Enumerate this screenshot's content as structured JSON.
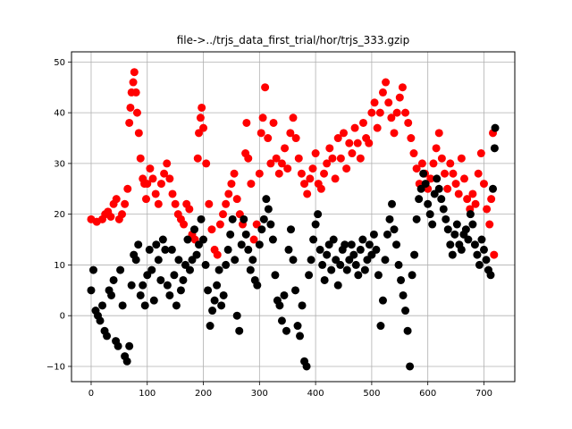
{
  "chart_data": {
    "type": "scatter",
    "title": "file->../trjs_data_first_trial/hor/trjs_333.gzip",
    "xlabel": "",
    "ylabel": "",
    "xlim": [
      -35,
      755
    ],
    "ylim": [
      -13,
      52
    ],
    "grid": true,
    "xticks": [
      0,
      100,
      200,
      300,
      400,
      500,
      600,
      700
    ],
    "yticks": [
      -10,
      0,
      10,
      20,
      30,
      40,
      50
    ],
    "colors": {
      "series_a": "#ff0000",
      "series_b": "#000000"
    },
    "series": [
      {
        "color": "#ff0000",
        "points": [
          [
            0,
            19
          ],
          [
            10,
            18.5
          ],
          [
            20,
            19
          ],
          [
            25,
            20
          ],
          [
            30,
            20.5
          ],
          [
            35,
            19.5
          ],
          [
            40,
            22
          ],
          [
            45,
            23
          ],
          [
            50,
            19
          ],
          [
            55,
            20
          ],
          [
            60,
            22
          ],
          [
            65,
            25
          ],
          [
            68,
            38
          ],
          [
            70,
            41
          ],
          [
            72,
            44
          ],
          [
            75,
            46
          ],
          [
            77,
            48
          ],
          [
            80,
            44
          ],
          [
            82,
            40
          ],
          [
            85,
            36
          ],
          [
            88,
            31
          ],
          [
            92,
            27
          ],
          [
            95,
            26
          ],
          [
            98,
            23
          ],
          [
            100,
            26
          ],
          [
            105,
            29
          ],
          [
            110,
            27
          ],
          [
            115,
            24
          ],
          [
            120,
            22
          ],
          [
            125,
            26
          ],
          [
            130,
            28
          ],
          [
            135,
            30
          ],
          [
            140,
            27
          ],
          [
            145,
            24
          ],
          [
            150,
            22
          ],
          [
            155,
            20
          ],
          [
            160,
            19
          ],
          [
            165,
            18
          ],
          [
            170,
            22
          ],
          [
            175,
            21
          ],
          [
            180,
            16
          ],
          [
            185,
            15
          ],
          [
            190,
            31
          ],
          [
            192,
            36
          ],
          [
            195,
            39
          ],
          [
            197,
            41
          ],
          [
            200,
            37
          ],
          [
            205,
            30
          ],
          [
            210,
            22
          ],
          [
            215,
            17
          ],
          [
            220,
            13
          ],
          [
            225,
            12
          ],
          [
            230,
            18
          ],
          [
            235,
            20
          ],
          [
            240,
            22
          ],
          [
            245,
            24
          ],
          [
            250,
            26
          ],
          [
            255,
            28
          ],
          [
            260,
            23
          ],
          [
            265,
            20
          ],
          [
            270,
            18
          ],
          [
            275,
            32
          ],
          [
            277,
            38
          ],
          [
            280,
            31
          ],
          [
            285,
            26
          ],
          [
            290,
            15
          ],
          [
            295,
            18
          ],
          [
            300,
            28
          ],
          [
            303,
            36
          ],
          [
            306,
            39
          ],
          [
            310,
            45
          ],
          [
            315,
            35
          ],
          [
            320,
            30
          ],
          [
            325,
            38
          ],
          [
            330,
            31
          ],
          [
            335,
            28
          ],
          [
            340,
            30
          ],
          [
            345,
            33
          ],
          [
            350,
            29
          ],
          [
            355,
            36
          ],
          [
            360,
            39
          ],
          [
            365,
            35
          ],
          [
            370,
            31
          ],
          [
            375,
            28
          ],
          [
            380,
            26
          ],
          [
            385,
            24
          ],
          [
            390,
            27
          ],
          [
            395,
            29
          ],
          [
            400,
            32
          ],
          [
            405,
            26
          ],
          [
            410,
            25
          ],
          [
            415,
            28
          ],
          [
            420,
            30
          ],
          [
            425,
            33
          ],
          [
            430,
            31
          ],
          [
            435,
            27
          ],
          [
            440,
            35
          ],
          [
            445,
            31
          ],
          [
            450,
            36
          ],
          [
            455,
            29
          ],
          [
            460,
            34
          ],
          [
            465,
            32
          ],
          [
            470,
            37
          ],
          [
            475,
            34
          ],
          [
            480,
            31
          ],
          [
            485,
            38
          ],
          [
            490,
            35
          ],
          [
            495,
            34
          ],
          [
            500,
            40
          ],
          [
            505,
            42
          ],
          [
            510,
            37
          ],
          [
            515,
            40
          ],
          [
            520,
            44
          ],
          [
            525,
            46
          ],
          [
            530,
            42
          ],
          [
            535,
            39
          ],
          [
            540,
            36
          ],
          [
            545,
            40
          ],
          [
            550,
            43
          ],
          [
            555,
            45
          ],
          [
            560,
            40
          ],
          [
            565,
            38
          ],
          [
            570,
            35
          ],
          [
            575,
            32
          ],
          [
            580,
            29
          ],
          [
            585,
            26
          ],
          [
            590,
            30
          ],
          [
            595,
            28
          ],
          [
            600,
            25
          ],
          [
            605,
            27
          ],
          [
            610,
            30
          ],
          [
            615,
            33
          ],
          [
            620,
            36
          ],
          [
            625,
            31
          ],
          [
            630,
            28
          ],
          [
            635,
            25
          ],
          [
            640,
            30
          ],
          [
            645,
            28
          ],
          [
            650,
            26
          ],
          [
            655,
            24
          ],
          [
            660,
            31
          ],
          [
            665,
            27
          ],
          [
            670,
            23
          ],
          [
            675,
            21
          ],
          [
            680,
            24
          ],
          [
            685,
            22
          ],
          [
            690,
            28
          ],
          [
            695,
            32
          ],
          [
            700,
            26
          ],
          [
            705,
            21
          ],
          [
            710,
            18
          ],
          [
            713,
            23
          ],
          [
            716,
            36
          ],
          [
            718,
            12
          ]
        ]
      },
      {
        "color": "#000000",
        "points": [
          [
            0,
            5
          ],
          [
            4,
            9
          ],
          [
            8,
            1
          ],
          [
            12,
            0
          ],
          [
            16,
            -1
          ],
          [
            20,
            2
          ],
          [
            24,
            -3
          ],
          [
            28,
            -4
          ],
          [
            32,
            5
          ],
          [
            36,
            4
          ],
          [
            40,
            7
          ],
          [
            44,
            -5
          ],
          [
            48,
            -6
          ],
          [
            52,
            9
          ],
          [
            56,
            2
          ],
          [
            60,
            -8
          ],
          [
            64,
            -9
          ],
          [
            68,
            -6
          ],
          [
            72,
            6
          ],
          [
            76,
            12
          ],
          [
            80,
            11
          ],
          [
            84,
            14
          ],
          [
            88,
            4
          ],
          [
            92,
            6
          ],
          [
            96,
            2
          ],
          [
            100,
            8
          ],
          [
            104,
            13
          ],
          [
            108,
            9
          ],
          [
            112,
            3
          ],
          [
            116,
            14
          ],
          [
            120,
            11
          ],
          [
            124,
            7
          ],
          [
            128,
            15
          ],
          [
            132,
            13
          ],
          [
            136,
            6
          ],
          [
            140,
            4
          ],
          [
            144,
            13
          ],
          [
            148,
            8
          ],
          [
            152,
            2
          ],
          [
            156,
            11
          ],
          [
            160,
            5
          ],
          [
            164,
            7
          ],
          [
            168,
            10
          ],
          [
            172,
            15
          ],
          [
            176,
            9
          ],
          [
            180,
            11
          ],
          [
            184,
            17
          ],
          [
            188,
            12
          ],
          [
            192,
            14
          ],
          [
            196,
            19
          ],
          [
            200,
            15
          ],
          [
            204,
            10
          ],
          [
            208,
            5
          ],
          [
            212,
            -2
          ],
          [
            216,
            1
          ],
          [
            220,
            3
          ],
          [
            224,
            6
          ],
          [
            228,
            9
          ],
          [
            232,
            2
          ],
          [
            236,
            4
          ],
          [
            240,
            10
          ],
          [
            244,
            13
          ],
          [
            248,
            16
          ],
          [
            252,
            19
          ],
          [
            256,
            11
          ],
          [
            260,
            0
          ],
          [
            264,
            -3
          ],
          [
            268,
            14
          ],
          [
            272,
            19
          ],
          [
            276,
            16
          ],
          [
            280,
            13
          ],
          [
            284,
            9
          ],
          [
            288,
            11
          ],
          [
            292,
            7
          ],
          [
            296,
            6
          ],
          [
            300,
            14
          ],
          [
            304,
            17
          ],
          [
            308,
            19
          ],
          [
            312,
            23
          ],
          [
            316,
            21
          ],
          [
            320,
            18
          ],
          [
            324,
            15
          ],
          [
            328,
            8
          ],
          [
            332,
            3
          ],
          [
            336,
            2
          ],
          [
            340,
            -1
          ],
          [
            344,
            4
          ],
          [
            348,
            -3
          ],
          [
            352,
            13
          ],
          [
            356,
            17
          ],
          [
            360,
            11
          ],
          [
            364,
            5
          ],
          [
            368,
            -2
          ],
          [
            372,
            -4
          ],
          [
            376,
            2
          ],
          [
            380,
            -9
          ],
          [
            384,
            -10
          ],
          [
            388,
            8
          ],
          [
            392,
            11
          ],
          [
            396,
            15
          ],
          [
            400,
            18
          ],
          [
            404,
            20
          ],
          [
            408,
            13
          ],
          [
            412,
            10
          ],
          [
            416,
            7
          ],
          [
            420,
            12
          ],
          [
            424,
            14
          ],
          [
            428,
            9
          ],
          [
            432,
            15
          ],
          [
            436,
            11
          ],
          [
            440,
            6
          ],
          [
            444,
            10
          ],
          [
            448,
            13
          ],
          [
            452,
            14
          ],
          [
            456,
            9
          ],
          [
            460,
            11
          ],
          [
            464,
            14
          ],
          [
            468,
            12
          ],
          [
            472,
            10
          ],
          [
            476,
            8
          ],
          [
            480,
            13
          ],
          [
            484,
            15
          ],
          [
            488,
            9
          ],
          [
            492,
            11
          ],
          [
            496,
            14
          ],
          [
            500,
            12
          ],
          [
            504,
            16
          ],
          [
            508,
            13
          ],
          [
            512,
            8
          ],
          [
            516,
            -2
          ],
          [
            520,
            3
          ],
          [
            524,
            11
          ],
          [
            528,
            16
          ],
          [
            532,
            19
          ],
          [
            536,
            22
          ],
          [
            540,
            17
          ],
          [
            544,
            14
          ],
          [
            548,
            10
          ],
          [
            552,
            7
          ],
          [
            556,
            4
          ],
          [
            560,
            1
          ],
          [
            564,
            -3
          ],
          [
            568,
            -10
          ],
          [
            572,
            8
          ],
          [
            576,
            12
          ],
          [
            580,
            19
          ],
          [
            584,
            23
          ],
          [
            588,
            25
          ],
          [
            592,
            28
          ],
          [
            596,
            26
          ],
          [
            600,
            22
          ],
          [
            604,
            20
          ],
          [
            608,
            18
          ],
          [
            612,
            24
          ],
          [
            616,
            27
          ],
          [
            620,
            25
          ],
          [
            624,
            23
          ],
          [
            628,
            21
          ],
          [
            632,
            19
          ],
          [
            636,
            17
          ],
          [
            640,
            14
          ],
          [
            644,
            12
          ],
          [
            648,
            16
          ],
          [
            652,
            18
          ],
          [
            656,
            14
          ],
          [
            660,
            13
          ],
          [
            664,
            16
          ],
          [
            668,
            17
          ],
          [
            672,
            15
          ],
          [
            676,
            20
          ],
          [
            680,
            18
          ],
          [
            684,
            14
          ],
          [
            688,
            12
          ],
          [
            692,
            10
          ],
          [
            696,
            15
          ],
          [
            700,
            13
          ],
          [
            704,
            11
          ],
          [
            708,
            9
          ],
          [
            712,
            8
          ],
          [
            716,
            25
          ],
          [
            719,
            33
          ],
          [
            720,
            37
          ]
        ]
      }
    ]
  }
}
